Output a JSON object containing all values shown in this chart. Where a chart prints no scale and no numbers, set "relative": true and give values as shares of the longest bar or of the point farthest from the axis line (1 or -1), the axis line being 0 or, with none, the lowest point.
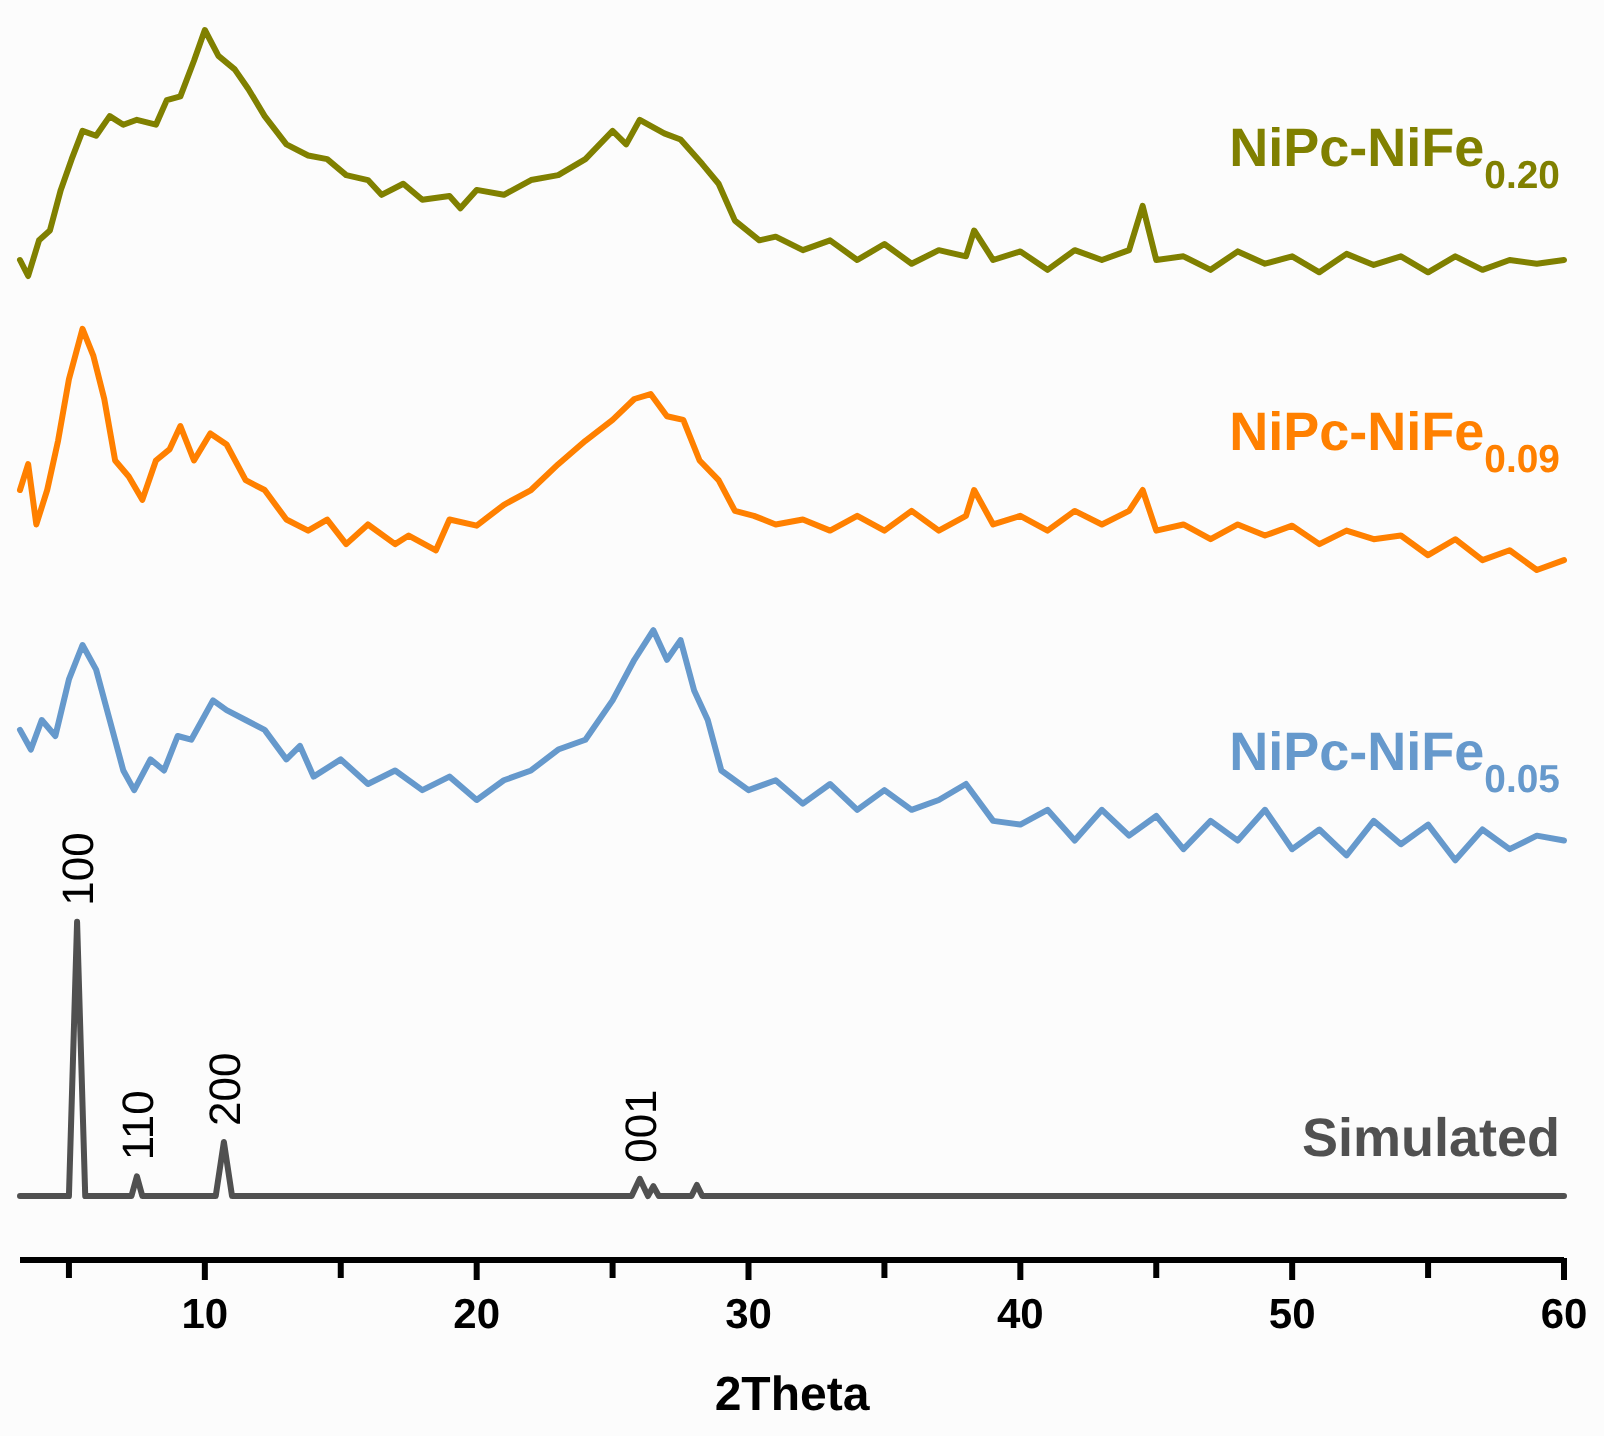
{
  "chart_data": {
    "type": "line",
    "relative": true,
    "xlabel": "2Theta",
    "xlim": [
      3.2,
      60
    ],
    "xticks": [
      {
        "value": 5,
        "label": null
      },
      10,
      {
        "value": 15,
        "label": null
      },
      20,
      {
        "value": 25,
        "label": null
      },
      30,
      {
        "value": 35,
        "label": null
      },
      40,
      {
        "value": 45,
        "label": null
      },
      50,
      {
        "value": 55,
        "label": null
      },
      60
    ],
    "grid": false,
    "legend": false,
    "marker": "none",
    "line_style": "solid",
    "annotations": [
      {
        "text": "100",
        "x": 5.3,
        "y": 0.275
      },
      {
        "text": "110",
        "x": 7.5,
        "y": 0.068
      },
      {
        "text": "200",
        "x": 10.7,
        "y": 0.096
      },
      {
        "text": "001",
        "x": 26,
        "y": 0.066
      }
    ],
    "series": [
      {
        "name": "NiPc-NiFe$_{0.20}$",
        "color": "#808000",
        "x": [
          3.2,
          3.5,
          3.9,
          4.3,
          4.7,
          5.1,
          5.5,
          6.0,
          6.5,
          7.0,
          7.5,
          8.2,
          8.6,
          9.1,
          9.6,
          10.0,
          10.5,
          11.1,
          11.6,
          12.2,
          13,
          13.8,
          14.5,
          15.2,
          16,
          16.5,
          17.3,
          18,
          19,
          19.4,
          20,
          21,
          22,
          23,
          24,
          25,
          25.5,
          26,
          26.9,
          27.5,
          28.3,
          28.9,
          29.5,
          30.4,
          31,
          32,
          33,
          34,
          35,
          36,
          37,
          38,
          38.3,
          39,
          40,
          41,
          42,
          43,
          44,
          44.5,
          45,
          46,
          47,
          48,
          49,
          50,
          51,
          52,
          53,
          54,
          55,
          56,
          57,
          58,
          59,
          60
        ],
        "values": [
          0.813,
          0.8,
          0.829,
          0.837,
          0.87,
          0.895,
          0.918,
          0.914,
          0.93,
          0.923,
          0.927,
          0.923,
          0.943,
          0.946,
          0.975,
          1.0,
          0.979,
          0.968,
          0.952,
          0.93,
          0.907,
          0.898,
          0.895,
          0.882,
          0.878,
          0.866,
          0.875,
          0.862,
          0.865,
          0.855,
          0.87,
          0.866,
          0.878,
          0.882,
          0.895,
          0.918,
          0.907,
          0.927,
          0.916,
          0.911,
          0.891,
          0.875,
          0.845,
          0.829,
          0.832,
          0.821,
          0.829,
          0.813,
          0.826,
          0.81,
          0.821,
          0.816,
          0.837,
          0.813,
          0.82,
          0.805,
          0.821,
          0.813,
          0.821,
          0.857,
          0.813,
          0.816,
          0.805,
          0.82,
          0.81,
          0.816,
          0.803,
          0.818,
          0.809,
          0.816,
          0.803,
          0.816,
          0.805,
          0.813,
          0.81,
          0.813
        ]
      },
      {
        "name": "NiPc-NiFe$_{0.09}$",
        "color": "#ff8000",
        "x": [
          3.2,
          3.5,
          3.8,
          4.2,
          4.6,
          5.0,
          5.5,
          5.9,
          6.3,
          6.7,
          7.2,
          7.7,
          8.2,
          8.7,
          9.1,
          9.6,
          10.2,
          10.8,
          11.5,
          12.2,
          13,
          13.8,
          14.5,
          15.2,
          16,
          17,
          17.5,
          18.5,
          19,
          20,
          21,
          22,
          23,
          24,
          25,
          25.8,
          26.4,
          27,
          27.6,
          28.2,
          28.9,
          29.5,
          30.2,
          31,
          32,
          33,
          34,
          35,
          36,
          37,
          38,
          38.3,
          39,
          40,
          41,
          42,
          43,
          44,
          44.5,
          45,
          46,
          47,
          48,
          49,
          50,
          51,
          52,
          53,
          54,
          55,
          56,
          57,
          58,
          59,
          60
        ],
        "values": [
          0.626,
          0.647,
          0.598,
          0.626,
          0.666,
          0.716,
          0.757,
          0.735,
          0.7,
          0.65,
          0.637,
          0.618,
          0.65,
          0.659,
          0.678,
          0.65,
          0.672,
          0.663,
          0.634,
          0.626,
          0.602,
          0.593,
          0.602,
          0.582,
          0.598,
          0.582,
          0.589,
          0.577,
          0.602,
          0.597,
          0.614,
          0.626,
          0.647,
          0.666,
          0.683,
          0.7,
          0.704,
          0.686,
          0.683,
          0.65,
          0.634,
          0.609,
          0.605,
          0.598,
          0.602,
          0.593,
          0.605,
          0.593,
          0.609,
          0.593,
          0.605,
          0.626,
          0.598,
          0.605,
          0.593,
          0.609,
          0.598,
          0.609,
          0.626,
          0.593,
          0.598,
          0.586,
          0.598,
          0.589,
          0.597,
          0.582,
          0.593,
          0.586,
          0.589,
          0.573,
          0.586,
          0.569,
          0.577,
          0.561,
          0.569
        ]
      },
      {
        "name": "NiPc-NiFe$_{0.05}$",
        "color": "#6699cc",
        "x": [
          3.2,
          3.6,
          4.0,
          4.5,
          5.0,
          5.5,
          6.0,
          6.5,
          7.0,
          7.4,
          8.0,
          8.5,
          9.0,
          9.5,
          10.3,
          10.8,
          11.5,
          12.2,
          13.0,
          13.5,
          14.0,
          15,
          16,
          17,
          18,
          19,
          20,
          21,
          22,
          23,
          24,
          25,
          25.8,
          26.5,
          27.0,
          27.5,
          28,
          28.5,
          29,
          30,
          31,
          32,
          33,
          34,
          35,
          36,
          37,
          38,
          39,
          40,
          41,
          42,
          43,
          44,
          45,
          46,
          47,
          48,
          49,
          50,
          51,
          52,
          53,
          54,
          55,
          56,
          57,
          58,
          59,
          60
        ],
        "values": [
          0.431,
          0.415,
          0.439,
          0.426,
          0.472,
          0.5,
          0.48,
          0.439,
          0.398,
          0.382,
          0.407,
          0.398,
          0.426,
          0.423,
          0.455,
          0.447,
          0.439,
          0.431,
          0.407,
          0.418,
          0.393,
          0.407,
          0.387,
          0.398,
          0.382,
          0.393,
          0.374,
          0.39,
          0.398,
          0.415,
          0.423,
          0.455,
          0.488,
          0.512,
          0.488,
          0.504,
          0.463,
          0.439,
          0.398,
          0.382,
          0.39,
          0.371,
          0.387,
          0.366,
          0.382,
          0.366,
          0.374,
          0.387,
          0.357,
          0.354,
          0.366,
          0.341,
          0.366,
          0.345,
          0.361,
          0.334,
          0.357,
          0.341,
          0.366,
          0.334,
          0.35,
          0.329,
          0.357,
          0.338,
          0.354,
          0.325,
          0.35,
          0.334,
          0.345,
          0.341
        ]
      },
      {
        "name": "Simulated",
        "color": "#505050",
        "x": [
          3.2,
          5.0,
          5.3,
          5.6,
          7.3,
          7.5,
          7.7,
          10.4,
          10.7,
          11.0,
          25.7,
          26.0,
          26.3,
          26.5,
          26.7,
          27.9,
          28.1,
          28.3,
          60
        ],
        "values": [
          0.052,
          0.052,
          0.275,
          0.052,
          0.052,
          0.068,
          0.052,
          0.052,
          0.096,
          0.052,
          0.052,
          0.066,
          0.052,
          0.06,
          0.052,
          0.052,
          0.061,
          0.052,
          0.052
        ]
      }
    ]
  }
}
